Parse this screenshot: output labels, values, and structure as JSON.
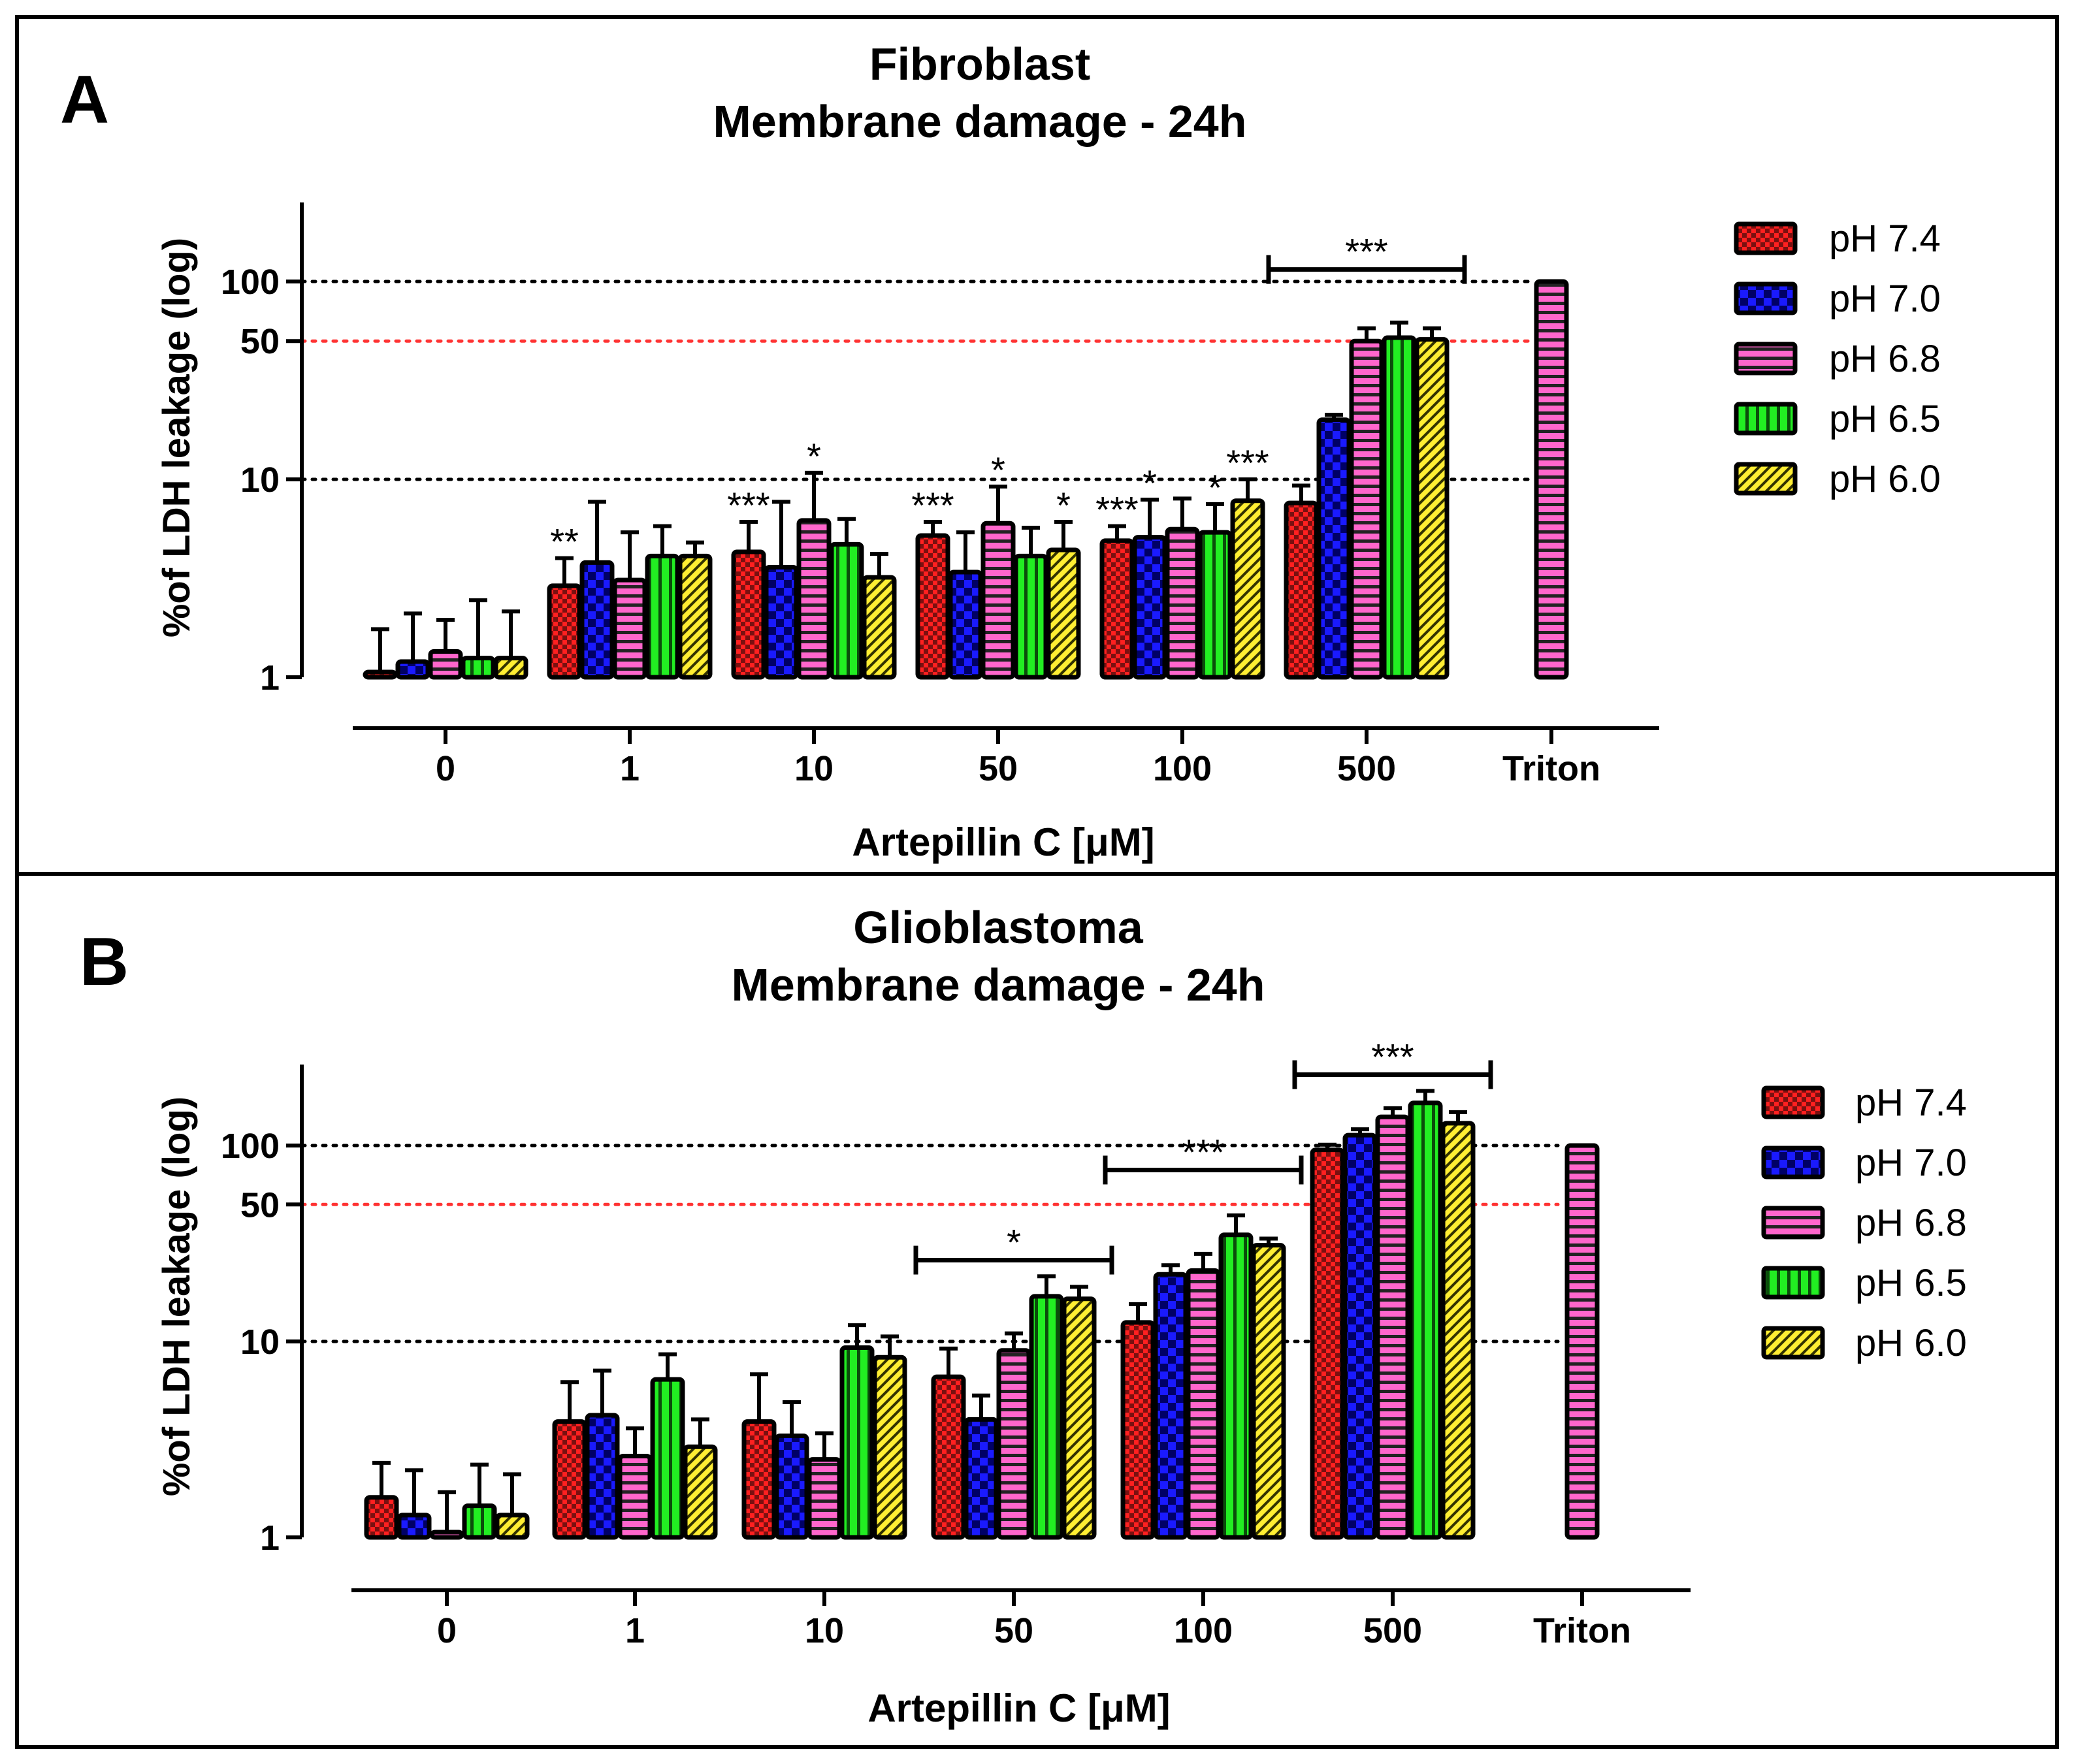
{
  "colors": {
    "pH 7.4": "#ff2020",
    "pH 7.0": "#1a1aff",
    "pH 6.8": "#ff66cc",
    "pH 6.5": "#22ee22",
    "pH 6.0": "#ffee33",
    "reference_line_black": "#000000",
    "reference_line_red": "#ff3333"
  },
  "chart_data": [
    {
      "type": "bar",
      "panel": "A",
      "title": "Fibroblast",
      "subtitle": "Membrane damage - 24h",
      "xlabel": "Artepillin C [μM]",
      "ylabel": "%of LDH leakage (log)",
      "yscale": "log",
      "ylim": [
        1,
        250
      ],
      "yticks": [
        1,
        10,
        50,
        100
      ],
      "ytick_labels": [
        "1",
        "10",
        "50",
        "100"
      ],
      "reference_lines": [
        {
          "y": 100,
          "color": "black",
          "style": "dotted"
        },
        {
          "y": 50,
          "color": "red",
          "style": "dotted"
        },
        {
          "y": 10,
          "color": "black",
          "style": "dotted"
        }
      ],
      "categories": [
        "0",
        "1",
        "10",
        "50",
        "100",
        "500",
        "Triton"
      ],
      "series": [
        {
          "name": "pH 7.4",
          "values": [
            1.05,
            2.9,
            4.3,
            5.2,
            4.9,
            7.6,
            null
          ],
          "errors": [
            0.7,
            1.1,
            1.8,
            0.9,
            0.9,
            1.7,
            null
          ]
        },
        {
          "name": "pH 7.0",
          "values": [
            1.2,
            3.8,
            3.6,
            3.4,
            5.1,
            20,
            null
          ],
          "errors": [
            0.9,
            3.9,
            4.1,
            2.0,
            2.8,
            1.2,
            null
          ]
        },
        {
          "name": "pH 6.8",
          "values": [
            1.35,
            3.1,
            6.2,
            6.0,
            5.6,
            50,
            100
          ],
          "errors": [
            0.6,
            2.3,
            4.6,
            3.2,
            2.4,
            8,
            null
          ]
        },
        {
          "name": "pH 6.5",
          "values": [
            1.25,
            4.1,
            4.7,
            4.1,
            5.4,
            52,
            null
          ],
          "errors": [
            1.2,
            1.7,
            1.6,
            1.6,
            2.1,
            10,
            null
          ]
        },
        {
          "name": "pH 6.0",
          "values": [
            1.25,
            4.1,
            3.2,
            4.4,
            7.8,
            51,
            null
          ],
          "errors": [
            0.9,
            0.7,
            1.0,
            1.7,
            2.2,
            7,
            null
          ]
        }
      ],
      "annotations": [
        {
          "text": "**",
          "category": "1",
          "series": "pH 7.4"
        },
        {
          "text": "***",
          "category": "10",
          "series": "pH 7.4"
        },
        {
          "text": "*",
          "category": "10",
          "series": "pH 6.8"
        },
        {
          "text": "***",
          "category": "50",
          "series": "pH 7.4"
        },
        {
          "text": "*",
          "category": "50",
          "series": "pH 6.8"
        },
        {
          "text": "*",
          "category": "50",
          "series": "pH 6.0"
        },
        {
          "text": "***",
          "category": "100",
          "series": "pH 7.4"
        },
        {
          "text": "*",
          "category": "100",
          "series": "pH 7.0"
        },
        {
          "text": "*",
          "category": "100",
          "series": "pH 6.5"
        },
        {
          "text": "***",
          "category": "100",
          "series": "pH 6.0"
        },
        {
          "text": "***",
          "category": "500",
          "bracket": true,
          "y": 115
        }
      ],
      "legend": [
        "pH 7.4",
        "pH 7.0",
        "pH 6.8",
        "pH 6.5",
        "pH 6.0"
      ],
      "legend_position": "right"
    },
    {
      "type": "bar",
      "panel": "B",
      "title": "Glioblastoma",
      "subtitle": "Membrane damage - 24h",
      "xlabel": "Artepillin  C [μM]",
      "ylabel": "%of LDH leakage (log)",
      "yscale": "log",
      "ylim": [
        1,
        300
      ],
      "yticks": [
        1,
        10,
        50,
        100
      ],
      "ytick_labels": [
        "1",
        "10",
        "50",
        "100"
      ],
      "reference_lines": [
        {
          "y": 100,
          "color": "black",
          "style": "dotted"
        },
        {
          "y": 50,
          "color": "red",
          "style": "dotted"
        },
        {
          "y": 10,
          "color": "black",
          "style": "dotted"
        }
      ],
      "categories": [
        "0",
        "1",
        "10",
        "50",
        "100",
        "500",
        "Triton"
      ],
      "series": [
        {
          "name": "pH 7.4",
          "values": [
            1.6,
            3.9,
            3.9,
            6.6,
            12.5,
            95,
            null
          ],
          "errors": [
            0.8,
            2.3,
            2.9,
            2.6,
            3.0,
            6,
            null
          ]
        },
        {
          "name": "pH 7.0",
          "values": [
            1.3,
            4.2,
            3.3,
            4.0,
            22,
            113,
            null
          ],
          "errors": [
            0.9,
            2.9,
            1.6,
            1.3,
            2.5,
            8,
            null
          ]
        },
        {
          "name": "pH 6.8",
          "values": [
            1.0,
            2.6,
            2.5,
            9.0,
            23,
            140,
            100
          ],
          "errors": [
            0.7,
            1.0,
            0.9,
            2.0,
            5,
            15,
            null
          ]
        },
        {
          "name": "pH 6.5",
          "values": [
            1.45,
            6.4,
            9.3,
            17,
            35,
            165,
            null
          ],
          "errors": [
            0.9,
            2.2,
            2.8,
            4.5,
            9,
            25,
            null
          ]
        },
        {
          "name": "pH 6.0",
          "values": [
            1.3,
            2.9,
            8.3,
            16.5,
            31,
            130,
            null
          ],
          "errors": [
            0.8,
            1.1,
            2.3,
            2.5,
            2.5,
            18,
            null
          ]
        }
      ],
      "annotations": [
        {
          "text": "*",
          "category": "50",
          "bracket": true,
          "y": 26
        },
        {
          "text": "***",
          "category": "100",
          "bracket": true,
          "y": 75
        },
        {
          "text": "***",
          "category": "500",
          "bracket": true,
          "y": 230
        }
      ],
      "legend": [
        "pH 7.4",
        "pH 7.0",
        "pH 6.8",
        "pH 6.5",
        "pH 6.0"
      ],
      "legend_position": "right"
    }
  ]
}
